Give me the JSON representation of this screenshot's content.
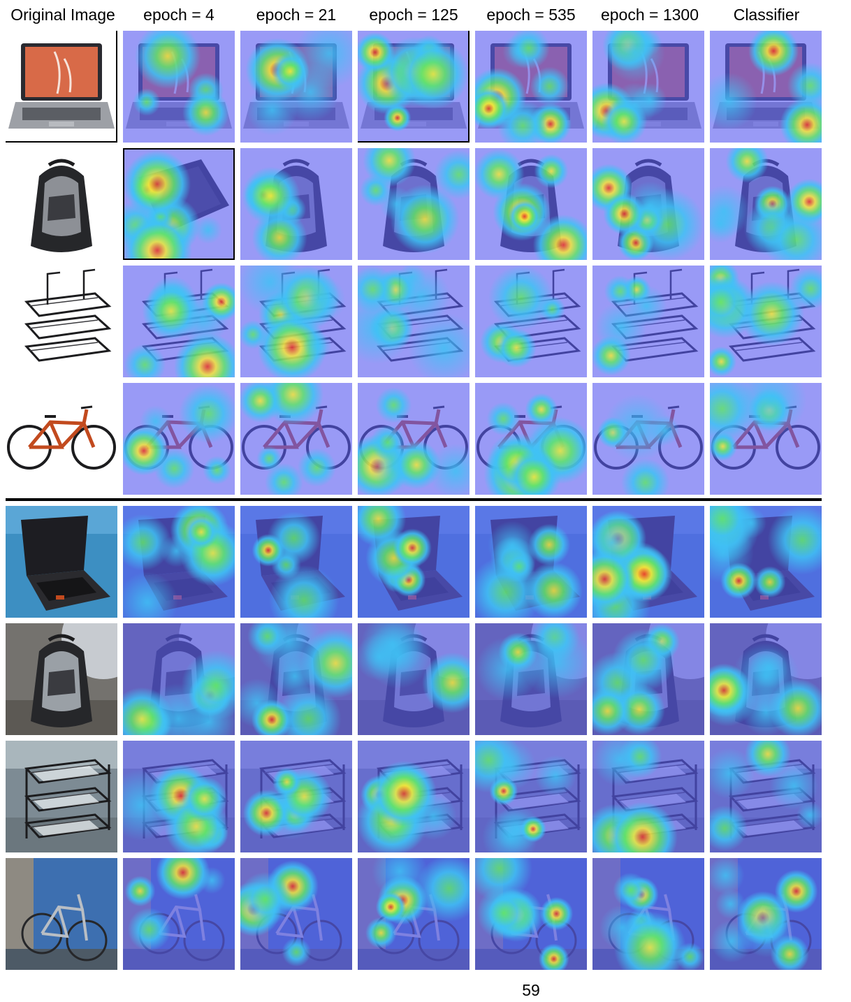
{
  "figure": {
    "column_headers": [
      "Original  Image",
      "epoch = 4",
      "epoch = 21",
      "epoch = 125",
      "epoch = 535",
      "epoch = 1300",
      "Classifier"
    ],
    "rows": [
      {
        "object": "laptop",
        "background": "white",
        "group": "top"
      },
      {
        "object": "backpack",
        "background": "white",
        "group": "top"
      },
      {
        "object": "letter-tray",
        "background": "white",
        "group": "top"
      },
      {
        "object": "bicycle",
        "background": "white",
        "group": "top"
      },
      {
        "object": "laptop",
        "background": "photo",
        "group": "bottom"
      },
      {
        "object": "backpack",
        "background": "photo",
        "group": "bottom"
      },
      {
        "object": "letter-tray",
        "background": "photo",
        "group": "bottom"
      },
      {
        "object": "bicycle",
        "background": "photo",
        "group": "bottom"
      }
    ],
    "heatmap_colors": {
      "cold": "#5a5cf0",
      "cool": "#3fc2f5",
      "mid": "#62e36a",
      "warm": "#f4e63a",
      "hot": "#e8312a"
    }
  },
  "page": {
    "number": "59"
  }
}
